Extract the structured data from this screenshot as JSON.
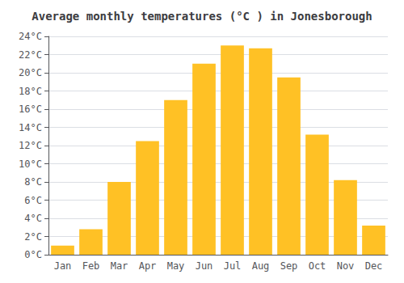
{
  "chart_data": {
    "type": "bar",
    "title": "Average monthly temperatures (°C ) in Jonesborough",
    "categories": [
      "Jan",
      "Feb",
      "Mar",
      "Apr",
      "May",
      "Jun",
      "Jul",
      "Aug",
      "Sep",
      "Oct",
      "Nov",
      "Dec"
    ],
    "values": [
      1.0,
      2.8,
      8.0,
      12.5,
      17.0,
      21.0,
      23.0,
      22.7,
      19.5,
      13.2,
      8.2,
      3.2
    ],
    "color": "#FFC125",
    "ylim": [
      0,
      24
    ],
    "yticks": [
      {
        "value": 0,
        "label": "0°C"
      },
      {
        "value": 2,
        "label": "2°C"
      },
      {
        "value": 4,
        "label": "4°C"
      },
      {
        "value": 6,
        "label": "6°C"
      },
      {
        "value": 8,
        "label": "8°C"
      },
      {
        "value": 10,
        "label": "10°C"
      },
      {
        "value": 12,
        "label": "12°C"
      },
      {
        "value": 14,
        "label": "14°C"
      },
      {
        "value": 16,
        "label": "16°C"
      },
      {
        "value": 18,
        "label": "18°C"
      },
      {
        "value": 20,
        "label": "20°C"
      },
      {
        "value": 22,
        "label": "22°C"
      },
      {
        "value": 24,
        "label": "24°C"
      }
    ],
    "grid": true
  }
}
